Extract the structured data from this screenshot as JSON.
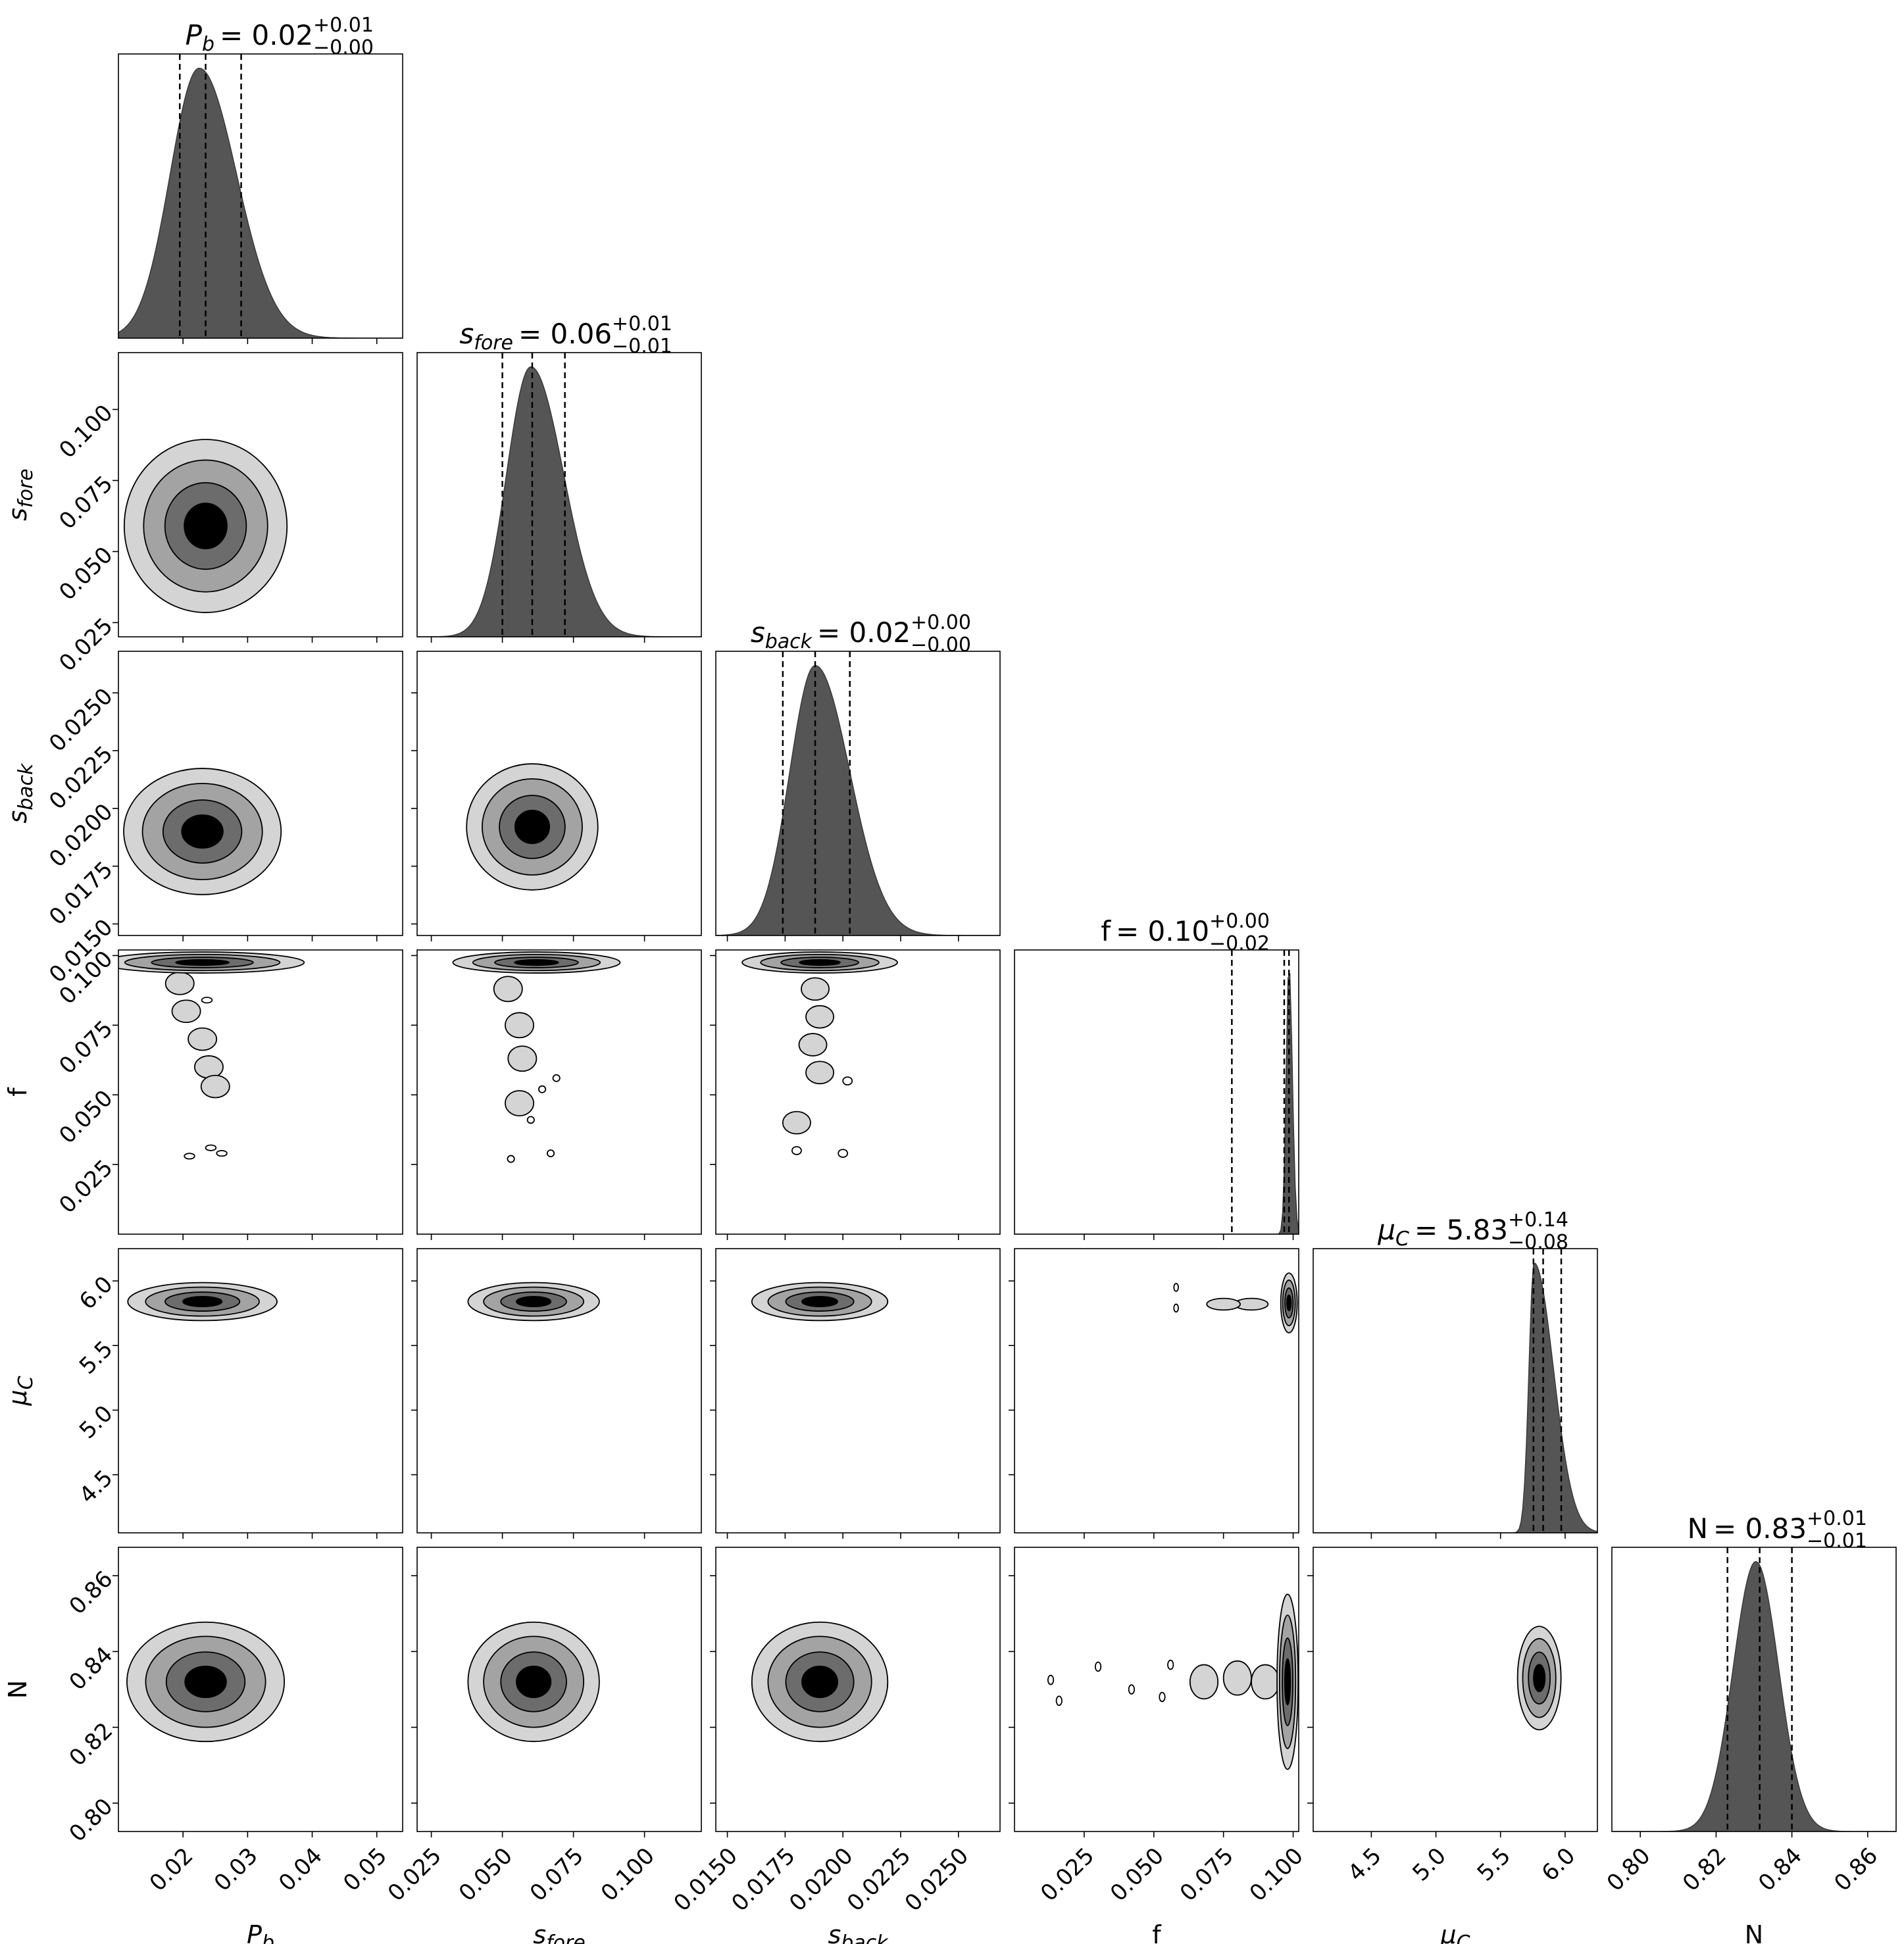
{
  "chart_data": {
    "type": "corner",
    "description_free": true,
    "parameters": [
      {
        "key": "Pb",
        "label": "P",
        "sub": "b",
        "italic": true,
        "range": [
          0.01,
          0.054
        ],
        "ticks": [
          0.02,
          0.03,
          0.04,
          0.05
        ],
        "tick_labels": [
          "0.02",
          "0.03",
          "0.04",
          "0.05"
        ],
        "title_value": "0.02",
        "title_plus": "+0.01",
        "title_minus": "−0.00",
        "quantiles": [
          0.0195,
          0.0235,
          0.029
        ]
      },
      {
        "key": "sfore",
        "label": "s",
        "sub": "fore",
        "italic": true,
        "range": [
          0.02,
          0.12
        ],
        "ticks": [
          0.025,
          0.05,
          0.075,
          0.1
        ],
        "tick_labels": [
          "0.025",
          "0.050",
          "0.075",
          "0.100"
        ],
        "title_value": "0.06",
        "title_plus": "+0.01",
        "title_minus": "−0.01",
        "quantiles": [
          0.05,
          0.0605,
          0.072
        ]
      },
      {
        "key": "sback",
        "label": "s",
        "sub": "back",
        "italic": true,
        "range": [
          0.0145,
          0.0268
        ],
        "ticks": [
          0.015,
          0.0175,
          0.02,
          0.0225,
          0.025
        ],
        "tick_labels": [
          "0.0150",
          "0.0175",
          "0.0200",
          "0.0225",
          "0.0250"
        ],
        "title_value": "0.02",
        "title_plus": "+0.00",
        "title_minus": "−0.00",
        "quantiles": [
          0.0174,
          0.0188,
          0.0203
        ]
      },
      {
        "key": "f",
        "label": "f",
        "sub": "",
        "italic": false,
        "range": [
          0.0,
          0.102
        ],
        "ticks": [
          0.025,
          0.05,
          0.075,
          0.1
        ],
        "tick_labels": [
          "0.025",
          "0.050",
          "0.075",
          "0.100"
        ],
        "title_value": "0.10",
        "title_plus": "+0.00",
        "title_minus": "−0.02",
        "quantiles": [
          0.078,
          0.0968,
          0.0985
        ]
      },
      {
        "key": "muC",
        "label": "μ",
        "sub": "C",
        "italic": true,
        "range": [
          4.05,
          6.25
        ],
        "ticks": [
          4.5,
          5.0,
          5.5,
          6.0
        ],
        "tick_labels": [
          "4.5",
          "5.0",
          "5.5",
          "6.0"
        ],
        "title_value": "5.83",
        "title_plus": "+0.14",
        "title_minus": "−0.08",
        "quantiles": [
          5.755,
          5.83,
          5.97
        ]
      },
      {
        "key": "N",
        "label": "N",
        "sub": "",
        "italic": false,
        "range": [
          0.7925,
          0.8675
        ],
        "ticks": [
          0.8,
          0.82,
          0.84,
          0.86
        ],
        "tick_labels": [
          "0.80",
          "0.82",
          "0.84",
          "0.86"
        ],
        "title_value": "0.83",
        "title_plus": "+0.01",
        "title_minus": "−0.01",
        "quantiles": [
          0.823,
          0.8315,
          0.84
        ]
      }
    ],
    "marginals": {
      "Pb": {
        "peak": 0.0225,
        "width_left": 0.0045,
        "width_right": 0.0058,
        "base": 0.04
      },
      "sfore": {
        "peak": 0.06,
        "width_left": 0.0085,
        "width_right": 0.0115,
        "base": 0.01
      },
      "sback": {
        "peak": 0.0188,
        "width_left": 0.0011,
        "width_right": 0.0015,
        "base": 0.01
      },
      "f": {
        "peak": 0.0985,
        "width_left": 0.001,
        "width_right": 0.0012,
        "base": 0.02
      },
      "muC": {
        "peak": 5.76,
        "width_left": 0.04,
        "width_right": 0.15,
        "base": 0.0
      },
      "N": {
        "peak": 0.8305,
        "width_left": 0.006,
        "width_right": 0.006,
        "base": 0.0
      }
    },
    "contour_levels": [
      "#d4d4d4",
      "#a3a3a3",
      "#6c6c6c",
      "#000000"
    ],
    "pairs": [
      {
        "row": "sfore",
        "col": "Pb",
        "cx": 0.0235,
        "cy": 0.059,
        "sx": 0.006,
        "sy": 0.0145
      },
      {
        "row": "sback",
        "col": "Pb",
        "cx": 0.023,
        "cy": 0.019,
        "sx": 0.0058,
        "sy": 0.0013
      },
      {
        "row": "sback",
        "col": "sfore",
        "cx": 0.0605,
        "cy": 0.0192,
        "sx": 0.011,
        "sy": 0.0013
      },
      {
        "row": "f",
        "col": "Pb",
        "cx": 0.023,
        "cy": 0.0975,
        "sx": 0.0075,
        "sy": 0.0018
      },
      {
        "row": "f",
        "col": "sfore",
        "cx": 0.062,
        "cy": 0.0975,
        "sx": 0.014,
        "sy": 0.0018
      },
      {
        "row": "f",
        "col": "sback",
        "cx": 0.019,
        "cy": 0.0975,
        "sx": 0.0016,
        "sy": 0.0018
      },
      {
        "row": "muC",
        "col": "Pb",
        "cx": 0.023,
        "cy": 5.84,
        "sx": 0.0055,
        "sy": 0.07
      },
      {
        "row": "muC",
        "col": "sfore",
        "cx": 0.061,
        "cy": 5.84,
        "sx": 0.011,
        "sy": 0.07
      },
      {
        "row": "muC",
        "col": "sback",
        "cx": 0.019,
        "cy": 5.84,
        "sx": 0.0014,
        "sy": 0.07
      },
      {
        "row": "muC",
        "col": "f",
        "cx": 0.0985,
        "cy": 5.83,
        "sx": 0.0014,
        "sy": 0.11
      },
      {
        "row": "N",
        "col": "Pb",
        "cx": 0.0235,
        "cy": 0.832,
        "sx": 0.0058,
        "sy": 0.0075
      },
      {
        "row": "N",
        "col": "sfore",
        "cx": 0.061,
        "cy": 0.832,
        "sx": 0.011,
        "sy": 0.0075
      },
      {
        "row": "N",
        "col": "sback",
        "cx": 0.019,
        "cy": 0.832,
        "sx": 0.0014,
        "sy": 0.0075
      },
      {
        "row": "N",
        "col": "f",
        "cx": 0.098,
        "cy": 0.832,
        "sx": 0.0018,
        "sy": 0.011
      },
      {
        "row": "N",
        "col": "muC",
        "cx": 5.8,
        "cy": 0.833,
        "sx": 0.08,
        "sy": 0.0065
      }
    ],
    "tails": [
      {
        "row": "f",
        "col": "Pb",
        "points": [
          [
            0.0195,
            0.09
          ],
          [
            0.0205,
            0.08
          ],
          [
            0.023,
            0.07
          ],
          [
            0.024,
            0.06
          ],
          [
            0.025,
            0.053
          ]
        ],
        "r": [
          0.0022,
          0.004
        ]
      },
      {
        "row": "f",
        "col": "sfore",
        "points": [
          [
            0.052,
            0.088
          ],
          [
            0.056,
            0.075
          ],
          [
            0.057,
            0.063
          ],
          [
            0.056,
            0.047
          ]
        ],
        "r": [
          0.005,
          0.0045
        ]
      },
      {
        "row": "f",
        "col": "sback",
        "points": [
          [
            0.0188,
            0.088
          ],
          [
            0.019,
            0.078
          ],
          [
            0.0187,
            0.068
          ],
          [
            0.019,
            0.058
          ],
          [
            0.018,
            0.04
          ]
        ],
        "r": [
          0.0006,
          0.004
        ]
      },
      {
        "row": "muC",
        "col": "f",
        "points": [
          [
            0.085,
            5.82
          ],
          [
            0.075,
            5.82
          ]
        ],
        "r": [
          0.006,
          0.045
        ]
      },
      {
        "row": "N",
        "col": "f",
        "points": [
          [
            0.09,
            0.832
          ],
          [
            0.08,
            0.833
          ],
          [
            0.068,
            0.832
          ]
        ],
        "r": [
          0.005,
          0.0045
        ]
      }
    ],
    "blobs": [
      {
        "row": "f",
        "col": "Pb",
        "points": [
          [
            0.021,
            0.028
          ],
          [
            0.026,
            0.029
          ],
          [
            0.0243,
            0.031
          ],
          [
            0.0237,
            0.084
          ]
        ],
        "r": [
          0.0008,
          0.001
        ]
      },
      {
        "row": "f",
        "col": "sfore",
        "points": [
          [
            0.053,
            0.027
          ],
          [
            0.067,
            0.029
          ],
          [
            0.06,
            0.041
          ],
          [
            0.064,
            0.052
          ],
          [
            0.069,
            0.056
          ]
        ],
        "r": [
          0.0012,
          0.0012
        ]
      },
      {
        "row": "f",
        "col": "sback",
        "points": [
          [
            0.018,
            0.03
          ],
          [
            0.02,
            0.029
          ],
          [
            0.0202,
            0.055
          ]
        ],
        "r": [
          0.0002,
          0.0014
        ]
      },
      {
        "row": "muC",
        "col": "f",
        "points": [
          [
            0.058,
            5.95
          ],
          [
            0.058,
            5.79
          ]
        ],
        "r": [
          0.0008,
          0.03
        ]
      },
      {
        "row": "N",
        "col": "f",
        "points": [
          [
            0.013,
            0.8325
          ],
          [
            0.016,
            0.827
          ],
          [
            0.03,
            0.836
          ],
          [
            0.042,
            0.83
          ],
          [
            0.053,
            0.828
          ],
          [
            0.056,
            0.8365
          ]
        ],
        "r": [
          0.001,
          0.0012
        ]
      }
    ]
  }
}
